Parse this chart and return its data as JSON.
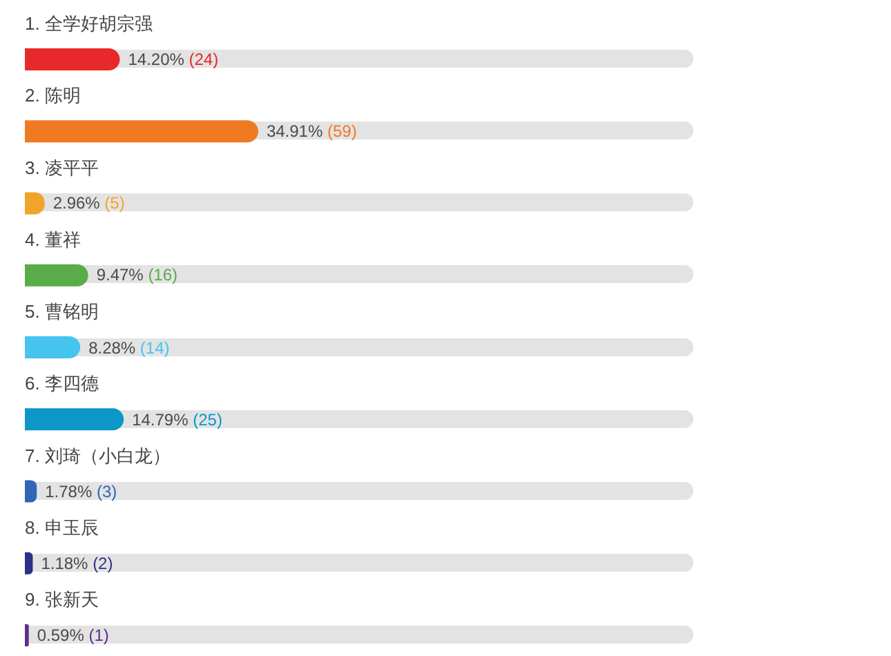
{
  "chart_data": {
    "type": "bar",
    "orientation": "horizontal",
    "tick_labels": "y",
    "xlim": [
      0,
      100
    ],
    "categories": [
      "1. 全学好胡宗强",
      "2. 陈明",
      "3. 凌平平",
      "4. 董祥",
      "5. 曹铭明",
      "6. 李四德",
      "7. 刘琦（小白龙）",
      "8. 申玉辰",
      "9. 张新天"
    ],
    "values": [
      14.2,
      34.91,
      2.96,
      9.47,
      8.28,
      14.79,
      1.78,
      1.18,
      0.59
    ],
    "colors": [
      "#e8292b",
      "#f07a22",
      "#f0a52a",
      "#5aac4a",
      "#45c4f0",
      "#0c97c8",
      "#2f66b5",
      "#2c3288",
      "#5f2d8f"
    ],
    "value_labels": [
      "14.20% (24)",
      "34.91% (59)",
      "2.96% (5)",
      "9.47% (16)",
      "8.28% (14)",
      "14.79% (25)",
      "1.78% (3)",
      "1.18% (2)",
      "0.59% (1)"
    ]
  }
}
